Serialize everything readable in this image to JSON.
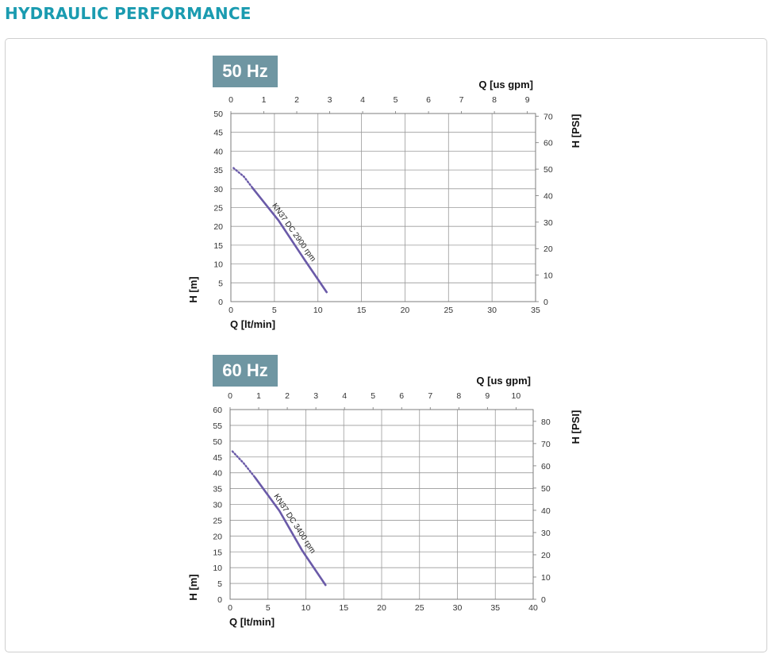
{
  "page": {
    "title": "HYDRAULIC PERFORMANCE"
  },
  "chart_data": [
    {
      "type": "line",
      "badge": "50 Hz",
      "top_xlabel": "Q [us gpm]",
      "bottom_xlabel": "Q [lt/min]",
      "ylabel_left": "H [m]",
      "ylabel_right": "H [PSI]",
      "xlim": [
        0,
        35
      ],
      "ylim": [
        0,
        50
      ],
      "bottom_ticks": [
        "0",
        "5",
        "10",
        "15",
        "20",
        "25",
        "30",
        "35"
      ],
      "left_ticks": [
        "0",
        "5",
        "10",
        "15",
        "20",
        "25",
        "30",
        "35",
        "40",
        "45",
        "50"
      ],
      "top_ticks": [
        "0",
        "1",
        "2",
        "3",
        "4",
        "5",
        "6",
        "7",
        "8",
        "9"
      ],
      "top_max": 9.25,
      "right_ticks": [
        "0",
        "10",
        "20",
        "30",
        "40",
        "50",
        "60",
        "70"
      ],
      "right_max": 71,
      "grid": true,
      "curve_color": "#6a5aa8",
      "series": [
        {
          "name": "KN37 DC 2900 rpm",
          "dotted": [
            [
              0.3,
              35.5
            ],
            [
              1.5,
              33.2
            ],
            [
              2.5,
              30.2
            ]
          ],
          "solid": [
            [
              2.5,
              30.2
            ],
            [
              5.5,
              21.5
            ],
            [
              8.5,
              11.0
            ],
            [
              11.0,
              2.5
            ]
          ]
        }
      ]
    },
    {
      "type": "line",
      "badge": "60 Hz",
      "top_xlabel": "Q [us gpm]",
      "bottom_xlabel": "Q [lt/min]",
      "ylabel_left": "H [m]",
      "ylabel_right": "H [PSI]",
      "xlim": [
        0,
        40
      ],
      "ylim": [
        0,
        60
      ],
      "bottom_ticks": [
        "0",
        "5",
        "10",
        "15",
        "20",
        "25",
        "30",
        "35",
        "40"
      ],
      "left_ticks": [
        "0",
        "5",
        "10",
        "15",
        "20",
        "25",
        "30",
        "35",
        "40",
        "45",
        "50",
        "55",
        "60"
      ],
      "top_ticks": [
        "0",
        "1",
        "2",
        "3",
        "4",
        "5",
        "6",
        "7",
        "8",
        "9",
        "10"
      ],
      "top_max": 10.6,
      "right_ticks": [
        "0",
        "10",
        "20",
        "30",
        "40",
        "50",
        "60",
        "70",
        "80"
      ],
      "right_max": 85.3,
      "grid": true,
      "curve_color": "#6a5aa8",
      "series": [
        {
          "name": "KN37 DC 3400 rpm",
          "dotted": [
            [
              0.3,
              46.8
            ],
            [
              1.8,
              43.0
            ],
            [
              3.3,
              38.5
            ]
          ],
          "solid": [
            [
              3.3,
              38.5
            ],
            [
              6.5,
              28.0
            ],
            [
              9.5,
              15.5
            ],
            [
              12.6,
              4.5
            ]
          ]
        }
      ]
    }
  ]
}
